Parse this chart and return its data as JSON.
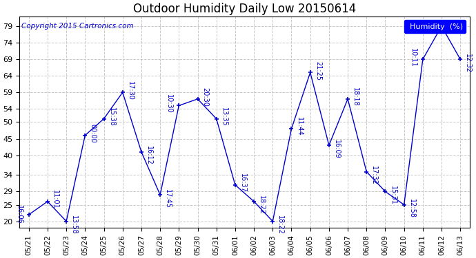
{
  "title": "Outdoor Humidity Daily Low 20150614",
  "copyright": "Copyright 2015 Cartronics.com",
  "legend_label": "Humidity  (%)",
  "x_labels": [
    "05/21",
    "05/22",
    "05/23",
    "05/24",
    "05/25",
    "05/26",
    "05/27",
    "05/28",
    "05/29",
    "05/30",
    "05/31",
    "06/01",
    "06/02",
    "06/03",
    "06/04",
    "06/05",
    "06/06",
    "06/07",
    "06/08",
    "06/09",
    "06/10",
    "06/11",
    "06/12",
    "06/13"
  ],
  "y_values": [
    22,
    26,
    20,
    46,
    51,
    59,
    41,
    28,
    55,
    57,
    51,
    31,
    26,
    20,
    48,
    65,
    43,
    57,
    35,
    29,
    25,
    69,
    79,
    69
  ],
  "point_labels": [
    "16:06",
    "11:01",
    "13:58",
    "00:00",
    "15:38",
    "17:30",
    "16:12",
    "17:45",
    "10:30",
    "20:30",
    "13:35",
    "16:37",
    "18:22",
    "18:22",
    "11:44",
    "21:25",
    "16:09",
    "18:18",
    "17:32",
    "15:31",
    "12:58",
    "10:11",
    "",
    "12:32"
  ],
  "label_above": [
    true,
    true,
    false,
    true,
    true,
    true,
    false,
    false,
    true,
    true,
    true,
    true,
    false,
    false,
    true,
    true,
    false,
    true,
    false,
    false,
    false,
    true,
    true,
    false
  ],
  "label_left": [
    true,
    false,
    false,
    false,
    false,
    false,
    false,
    false,
    false,
    false,
    false,
    false,
    false,
    false,
    false,
    false,
    false,
    false,
    false,
    false,
    false,
    false,
    false,
    false
  ],
  "yticks": [
    20,
    25,
    29,
    34,
    40,
    45,
    50,
    54,
    59,
    64,
    69,
    74,
    79
  ],
  "ylim": [
    18,
    82
  ],
  "xlim": [
    -0.5,
    23.5
  ],
  "line_color": "#0000cc",
  "grid_color": "#c8c8c8",
  "title_fontsize": 12,
  "tick_fontsize": 8,
  "label_fontsize": 7,
  "copyright_fontsize": 7.5,
  "figsize": [
    6.9,
    3.75
  ],
  "dpi": 100
}
